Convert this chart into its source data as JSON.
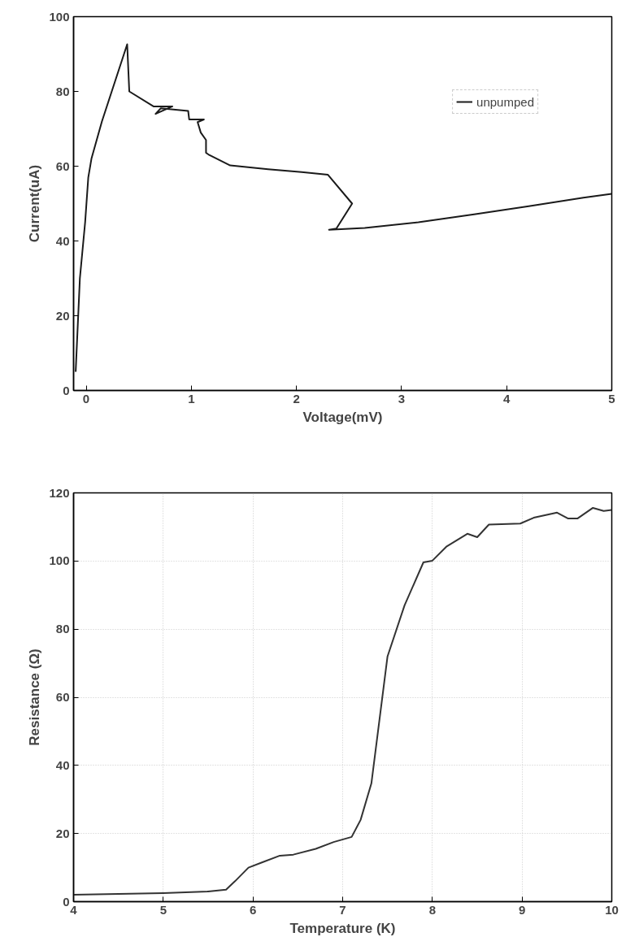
{
  "chart_data": [
    {
      "type": "line",
      "xlabel": "Voltage(mV)",
      "ylabel": "Current(uA)",
      "xlim": [
        -0.12,
        5
      ],
      "ylim": [
        0,
        100
      ],
      "xticks": [
        0,
        1,
        2,
        3,
        4,
        5
      ],
      "yticks": [
        0,
        20,
        40,
        60,
        80,
        100
      ],
      "grid": false,
      "legend": "top right",
      "series": [
        {
          "name": "unpumped",
          "color": "#1a1a1a",
          "x": [
            -0.1,
            -0.06,
            -0.01,
            0.02,
            0.05,
            0.15,
            0.39,
            0.41,
            0.64,
            0.82,
            0.66,
            0.71,
            0.97,
            0.98,
            1.12,
            1.06,
            1.09,
            1.14,
            1.14,
            1.17,
            1.37,
            1.73,
            2.05,
            2.3,
            2.53,
            2.38,
            2.31,
            2.65,
            3.16,
            3.69,
            4.21,
            4.73,
            5.0
          ],
          "values": [
            5,
            30,
            45,
            57,
            62,
            72,
            92.6,
            80,
            76,
            76,
            74,
            75.5,
            74.8,
            72.5,
            72.5,
            71.8,
            69,
            67,
            63.6,
            63,
            60.2,
            59.2,
            58.4,
            57.7,
            50,
            43.3,
            43,
            43.5,
            45,
            47.1,
            49.3,
            51.6,
            52.6
          ]
        }
      ]
    },
    {
      "type": "line",
      "xlabel": "Temperature (K)",
      "ylabel": "Resistance (Ω)",
      "xlim": [
        4,
        10
      ],
      "ylim": [
        0,
        120
      ],
      "xticks": [
        4,
        5,
        6,
        7,
        8,
        9,
        10
      ],
      "yticks": [
        0,
        20,
        40,
        60,
        80,
        100,
        120
      ],
      "grid": true,
      "series": [
        {
          "color": "#333333",
          "x": [
            4,
            5.0,
            5.5,
            5.7,
            5.8,
            5.95,
            6.1,
            6.3,
            6.45,
            6.7,
            6.9,
            7.1,
            7.2,
            7.32,
            7.5,
            7.69,
            7.9,
            8.0,
            8.16,
            8.39,
            8.5,
            8.63,
            8.98,
            9.13,
            9.39,
            9.51,
            9.62,
            9.79,
            9.91,
            10.0
          ],
          "values": [
            2,
            2.5,
            3,
            3.5,
            6,
            10,
            11.5,
            13.5,
            13.8,
            15.5,
            17.5,
            19,
            24,
            34.7,
            72,
            87,
            99.6,
            100.1,
            104.3,
            108,
            107,
            110.7,
            111,
            112.7,
            114.2,
            112.5,
            112.5,
            115.6,
            114.7,
            115
          ]
        }
      ]
    }
  ]
}
